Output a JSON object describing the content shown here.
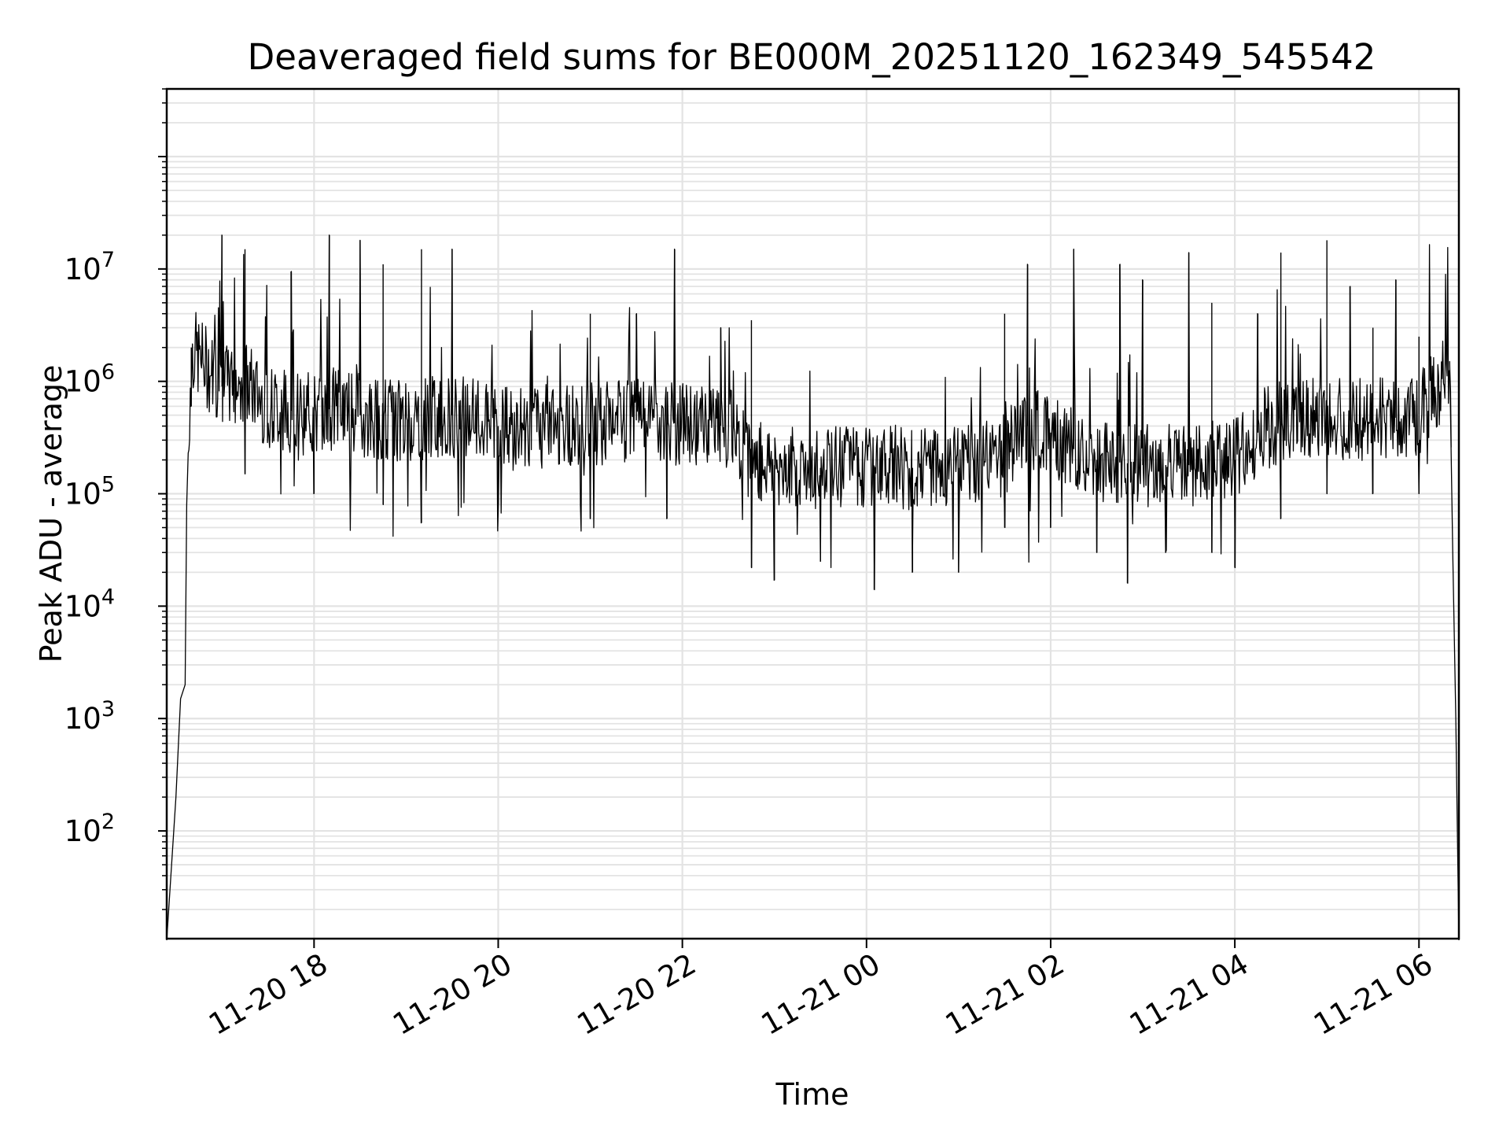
{
  "chart_data": {
    "type": "line",
    "title": "Deaveraged field sums for BE000M_20251120_162349_545542",
    "xlabel": "Time",
    "ylabel": "Peak ADU - average",
    "yscale": "log",
    "ylim": [
      11,
      400000000
    ],
    "xlim": [
      "11-20 16:24",
      "11-21 06:26"
    ],
    "grid": true,
    "x_ticks": [
      "11-20 18",
      "11-20 20",
      "11-20 22",
      "11-21 00",
      "11-21 02",
      "11-21 04",
      "11-21 06"
    ],
    "y_ticks": [
      {
        "value": 100,
        "base": "10",
        "exp": "2"
      },
      {
        "value": 1000,
        "base": "10",
        "exp": "3"
      },
      {
        "value": 10000,
        "base": "10",
        "exp": "4"
      },
      {
        "value": 100000,
        "base": "10",
        "exp": "5"
      },
      {
        "value": 1000000,
        "base": "10",
        "exp": "6"
      },
      {
        "value": 10000000,
        "base": "10",
        "exp": "7"
      }
    ],
    "line_color": "#000000",
    "series": [
      {
        "points": [
          [
            "11-20 16:24",
            10
          ],
          [
            "11-20 16:30",
            200
          ],
          [
            "11-20 16:33",
            1500
          ],
          [
            "11-20 16:36",
            2000
          ],
          [
            "11-20 16:37",
            80000
          ],
          [
            "11-20 16:40",
            2000000
          ],
          [
            "11-20 17:00",
            900000
          ],
          [
            "11-20 17:15",
            1000000
          ],
          [
            "11-20 17:30",
            600000
          ],
          [
            "11-20 18:00",
            500000
          ],
          [
            "11-20 18:15",
            600000
          ],
          [
            "11-20 18:30",
            500000
          ],
          [
            "11-20 19:00",
            450000
          ],
          [
            "11-20 19:30",
            500000
          ],
          [
            "11-20 20:00",
            400000
          ],
          [
            "11-20 20:30",
            400000
          ],
          [
            "11-20 21:00",
            420000
          ],
          [
            "11-20 21:30",
            450000
          ],
          [
            "11-20 22:00",
            420000
          ],
          [
            "11-20 22:30",
            400000
          ],
          [
            "11-20 22:45",
            200000
          ],
          [
            "11-20 23:00",
            180000
          ],
          [
            "11-20 23:30",
            170000
          ],
          [
            "11-21 00:00",
            180000
          ],
          [
            "11-21 00:30",
            170000
          ],
          [
            "11-21 01:00",
            170000
          ],
          [
            "11-21 01:30",
            220000
          ],
          [
            "11-21 01:45",
            400000
          ],
          [
            "11-21 02:00",
            350000
          ],
          [
            "11-21 02:15",
            250000
          ],
          [
            "11-21 02:30",
            200000
          ],
          [
            "11-21 03:00",
            180000
          ],
          [
            "11-21 03:30",
            180000
          ],
          [
            "11-21 04:00",
            200000
          ],
          [
            "11-21 04:15",
            350000
          ],
          [
            "11-21 04:30",
            450000
          ],
          [
            "11-21 05:00",
            450000
          ],
          [
            "11-21 05:30",
            450000
          ],
          [
            "11-21 06:00",
            500000
          ],
          [
            "11-21 06:15",
            1000000
          ],
          [
            "11-21 06:20",
            1500000
          ],
          [
            "11-21 06:22",
            30000
          ],
          [
            "11-21 06:24",
            1000
          ],
          [
            "11-21 06:26",
            10
          ]
        ],
        "peaks": [
          [
            "11-20 17:00",
            20000000
          ],
          [
            "11-20 17:15",
            15000000
          ],
          [
            "11-20 17:45",
            9500000
          ],
          [
            "11-20 18:10",
            20000000
          ],
          [
            "11-20 18:30",
            18000000
          ],
          [
            "11-20 18:45",
            11000000
          ],
          [
            "11-20 19:10",
            15000000
          ],
          [
            "11-20 19:30",
            15000000
          ],
          [
            "11-20 21:00",
            4000000
          ],
          [
            "11-20 21:30",
            4000000
          ],
          [
            "11-20 21:55",
            15000000
          ],
          [
            "11-20 22:25",
            3000000
          ],
          [
            "11-20 22:45",
            3500000
          ],
          [
            "11-21 01:30",
            4000000
          ],
          [
            "11-21 01:45",
            11000000
          ],
          [
            "11-21 02:15",
            15000000
          ],
          [
            "11-21 02:45",
            11000000
          ],
          [
            "11-21 03:00",
            8000000
          ],
          [
            "11-21 03:30",
            14000000
          ],
          [
            "11-21 03:45",
            5000000
          ],
          [
            "11-21 04:15",
            4000000
          ],
          [
            "11-21 04:30",
            14000000
          ],
          [
            "11-21 05:00",
            18000000
          ],
          [
            "11-21 05:15",
            7000000
          ],
          [
            "11-21 05:30",
            3000000
          ],
          [
            "11-21 05:45",
            8000000
          ],
          [
            "11-21 06:00",
            2500000
          ]
        ],
        "troughs": [
          [
            "11-20 16:40",
            600000
          ],
          [
            "11-20 17:15",
            150000
          ],
          [
            "11-20 18:00",
            100000
          ],
          [
            "11-20 18:45",
            80000
          ],
          [
            "11-20 19:10",
            55000
          ],
          [
            "11-20 20:00",
            80000
          ],
          [
            "11-20 21:00",
            60000
          ],
          [
            "11-20 21:50",
            60000
          ],
          [
            "11-20 22:45",
            22000
          ],
          [
            "11-20 23:00",
            17000
          ],
          [
            "11-20 23:30",
            25000
          ],
          [
            "11-21 00:05",
            14000
          ],
          [
            "11-21 00:30",
            20000
          ],
          [
            "11-21 01:00",
            20000
          ],
          [
            "11-21 01:30",
            50000
          ],
          [
            "11-21 02:00",
            50000
          ],
          [
            "11-21 02:30",
            30000
          ],
          [
            "11-21 02:50",
            16000
          ],
          [
            "11-21 03:15",
            30000
          ],
          [
            "11-21 03:45",
            30000
          ],
          [
            "11-21 04:00",
            22000
          ],
          [
            "11-21 04:30",
            60000
          ],
          [
            "11-21 05:00",
            100000
          ],
          [
            "11-21 05:30",
            100000
          ],
          [
            "11-21 06:00",
            100000
          ]
        ]
      }
    ]
  }
}
